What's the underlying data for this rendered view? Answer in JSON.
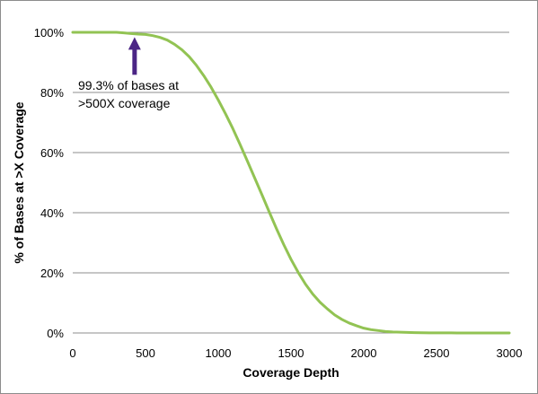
{
  "chart_data": {
    "type": "line",
    "title": "",
    "xlabel": "Coverage Depth",
    "ylabel": "% of Bases at >X Coverage",
    "xlim": [
      0,
      3000
    ],
    "ylim": [
      0,
      100
    ],
    "x_ticks": [
      "0",
      "500",
      "1000",
      "1500",
      "2000",
      "2500",
      "3000"
    ],
    "y_ticks": [
      "0%",
      "20%",
      "40%",
      "60%",
      "80%",
      "100%"
    ],
    "grid": "horizontal",
    "legend": "none",
    "series": [
      {
        "color": "#92c353",
        "x": [
          0,
          100,
          200,
          300,
          350,
          400,
          450,
          500,
          550,
          600,
          650,
          700,
          750,
          800,
          850,
          900,
          950,
          1000,
          1050,
          1100,
          1150,
          1200,
          1250,
          1300,
          1350,
          1400,
          1450,
          1500,
          1550,
          1600,
          1650,
          1700,
          1750,
          1800,
          1850,
          1900,
          1950,
          2000,
          2050,
          2100,
          2150,
          2200,
          2250,
          2300,
          2350,
          2400,
          2450,
          2500,
          2600,
          2700,
          2800,
          2900,
          3000
        ],
        "y": [
          100,
          100,
          100,
          100,
          99.8,
          99.6,
          99.4,
          99.3,
          98.9,
          98.3,
          97.4,
          96.0,
          94.2,
          91.9,
          89.0,
          85.6,
          81.8,
          77.5,
          72.9,
          68.0,
          62.7,
          57.2,
          51.6,
          46.0,
          40.3,
          34.7,
          29.4,
          24.5,
          20.1,
          16.2,
          12.9,
          10.2,
          8.0,
          6.0,
          4.5,
          3.3,
          2.4,
          1.6,
          1.1,
          0.8,
          0.5,
          0.35,
          0.25,
          0.17,
          0.12,
          0.08,
          0.05,
          0.03,
          0.02,
          0.01,
          0,
          0,
          0
        ]
      }
    ],
    "annotations": [
      {
        "text_line1": "99.3% of bases at",
        "text_line2": ">500X coverage",
        "x": 425,
        "y": 99.3,
        "arrow_color": "#4b2585"
      }
    ]
  }
}
